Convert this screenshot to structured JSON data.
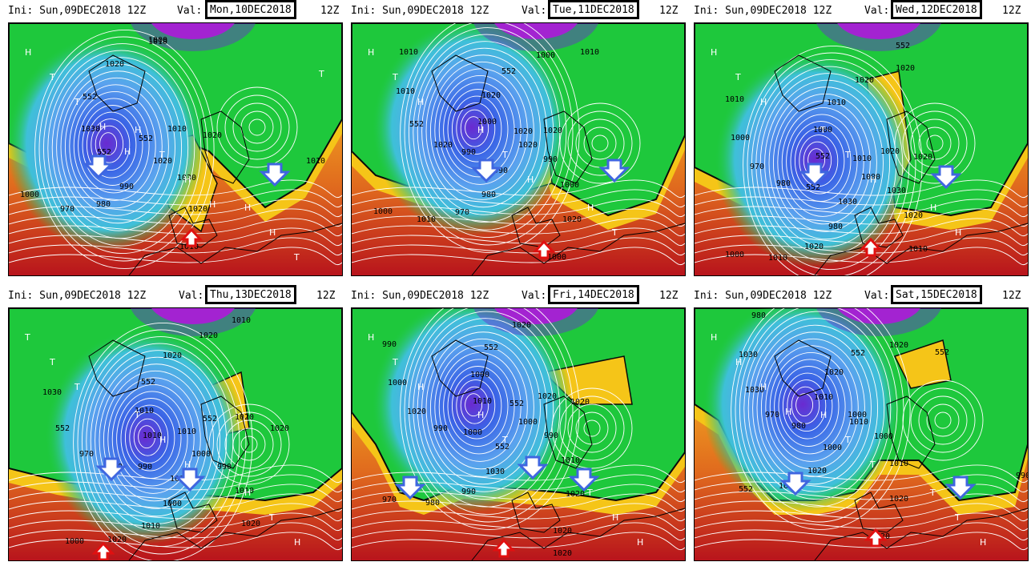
{
  "panels": [
    {
      "ini": "Ini: Sun,09DEC2018 12Z",
      "val_label": "Val:",
      "valid": "Mon,10DEC2018",
      "hour": "12Z",
      "contours": [
        "1020",
        "1030",
        "1020",
        "1010",
        "1010",
        "990",
        "980",
        "970",
        "1000",
        "1010",
        "552",
        "1030",
        "552",
        "1020",
        "1000",
        "552",
        "1010",
        "1020"
      ],
      "markers": [
        "H",
        "H",
        "H",
        "T",
        "T",
        "H",
        "T",
        "H",
        "T",
        "H",
        "H",
        "T",
        "H"
      ],
      "arrows": [
        "blue-down",
        "blue-down",
        "red-up"
      ]
    },
    {
      "ini": "Ini: Sun,09DEC2018 12Z",
      "val_label": "Val:",
      "valid": "Tue,11DEC2018",
      "hour": "12Z",
      "contours": [
        "1020",
        "990",
        "1000",
        "1020",
        "1000",
        "990",
        "980",
        "970",
        "1010",
        "1000",
        "990",
        "1020",
        "552",
        "1010",
        "1010",
        "1000",
        "1020",
        "552",
        "1000",
        "1010",
        "1020",
        "1020"
      ],
      "markers": [
        "H",
        "H",
        "H",
        "T",
        "T",
        "T",
        "H",
        "H"
      ],
      "arrows": [
        "blue-down",
        "blue-down",
        "red-up"
      ]
    },
    {
      "ini": "Ini: Sun,09DEC2018 12Z",
      "val_label": "Val:",
      "valid": "Wed,12DEC2018",
      "hour": "12Z",
      "contours": [
        "1000",
        "1030",
        "1020",
        "1010",
        "552",
        "1030",
        "980",
        "1020",
        "1010",
        "1000",
        "552",
        "980",
        "970",
        "1000",
        "1010",
        "552",
        "1000",
        "1010",
        "1020",
        "1020",
        "1010",
        "1020",
        "1020"
      ],
      "markers": [
        "H",
        "T",
        "H",
        "T",
        "T",
        "H",
        "H",
        "H"
      ],
      "arrows": [
        "blue-down",
        "blue-down",
        "red-up"
      ]
    },
    {
      "ini": "Ini: Sun,09DEC2018 12Z",
      "val_label": "Val:",
      "valid": "Thu,13DEC2018",
      "hour": "12Z",
      "contours": [
        "1000",
        "990",
        "1010",
        "1020",
        "1010",
        "1020",
        "1000",
        "1010",
        "1020",
        "1000",
        "990",
        "980",
        "970",
        "552",
        "1030",
        "1010",
        "1010",
        "552",
        "1020",
        "1020",
        "1010",
        "552",
        "1020",
        "1020"
      ],
      "markers": [
        "T",
        "T",
        "H",
        "T",
        "H",
        "T",
        "T",
        "H",
        "H"
      ],
      "arrows": [
        "blue-down",
        "blue-down",
        "red-up"
      ]
    },
    {
      "ini": "Ini: Sun,09DEC2018 12Z",
      "val_label": "Val:",
      "valid": "Fri,14DEC2018",
      "hour": "12Z",
      "contours": [
        "1000",
        "990",
        "1010",
        "1020",
        "1020",
        "552",
        "1030",
        "990",
        "980",
        "970",
        "1000",
        "990",
        "1020",
        "1000",
        "990",
        "1010",
        "1000",
        "552",
        "1020",
        "1020",
        "552",
        "1020",
        "1020"
      ],
      "markers": [
        "H",
        "H",
        "T",
        "T",
        "T",
        "H",
        "H",
        "H",
        "H"
      ],
      "arrows": [
        "blue-down",
        "blue-down",
        "blue-down",
        "red-up"
      ]
    },
    {
      "ini": "Ini: Sun,09DEC2018 12Z",
      "val_label": "Val:",
      "valid": "Sat,15DEC2018",
      "hour": "12Z",
      "contours": [
        "1010",
        "1000",
        "1010",
        "1020",
        "1020",
        "1000",
        "1020",
        "1020",
        "552",
        "990",
        "980",
        "970",
        "1030",
        "1030",
        "980",
        "1010",
        "1020",
        "552",
        "1020",
        "552",
        "1000"
      ],
      "markers": [
        "H",
        "H",
        "T",
        "H",
        "T",
        "T",
        "H",
        "T",
        "H",
        "H"
      ],
      "arrows": [
        "blue-down",
        "blue-down",
        "red-up"
      ]
    }
  ],
  "colors": {
    "deep_red": "#b8141c",
    "red": "#cf3a1e",
    "orange_red": "#e06a1e",
    "orange": "#f0a020",
    "yellow": "#f5c518",
    "lime": "#7fe046",
    "green": "#1ec83c",
    "cyan": "#3ec0d8",
    "lightblue": "#5aa2ee",
    "blue": "#3a64e6",
    "violet": "#6a2ad0",
    "magenta": "#d21ed2",
    "arrow_blue": "#3f66e0",
    "arrow_red": "#e01010"
  }
}
